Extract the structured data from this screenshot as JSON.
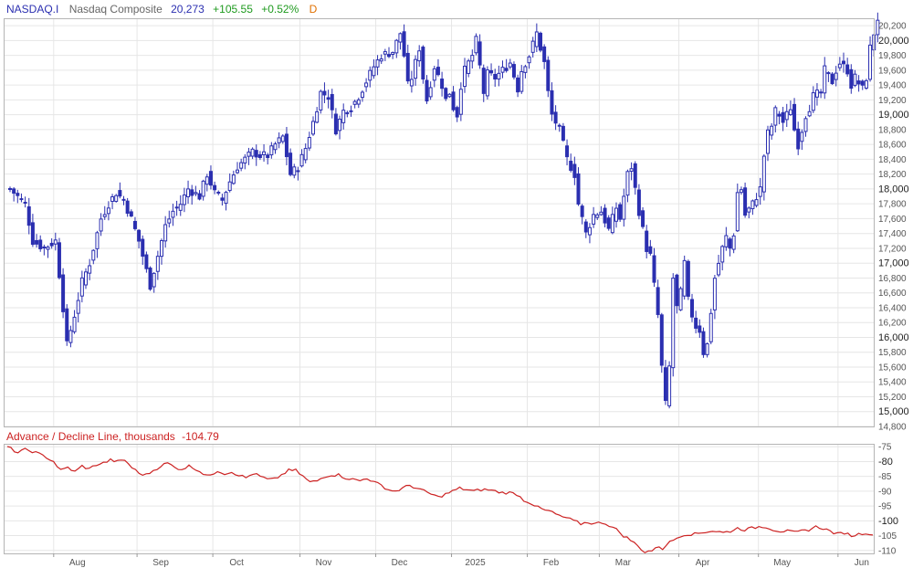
{
  "header": {
    "symbol": "NASDAQ.I",
    "name": "Nasdaq Composite",
    "last": "20,273",
    "change": "+105.55",
    "change_pct": "+0.52%",
    "period": "D"
  },
  "indicator": {
    "title": "Advance / Decline Line, thousands",
    "value": "-104.79"
  },
  "colors": {
    "up_candle": "#2b2fb0",
    "down_candle": "#2b2fb0",
    "ad_line": "#cc2222",
    "grid": "#e6e6e6",
    "border": "#b5b5b5",
    "symbol": "#2b2fb0",
    "name": "#666666",
    "last": "#2b2fb0",
    "change": "#1f9a1f",
    "period": "#e07000",
    "indicator_title": "#cc2222"
  },
  "chart_data": [
    {
      "type": "candlestick",
      "ylim": [
        14800,
        20300
      ],
      "y_ticks": [
        14800,
        15000,
        15200,
        15400,
        15600,
        15800,
        16000,
        16200,
        16400,
        16600,
        16800,
        17000,
        17200,
        17400,
        17600,
        17800,
        18000,
        18200,
        18400,
        18600,
        18800,
        19000,
        19200,
        19400,
        19600,
        19800,
        20000,
        20200
      ],
      "y_tick_labels": [
        "14,800",
        "15,000",
        "15,200",
        "15,400",
        "15,600",
        "15,800",
        "16,000",
        "16,200",
        "16,400",
        "16,600",
        "16,800",
        "17,000",
        "17,200",
        "17,400",
        "17,600",
        "17,800",
        "18,000",
        "18,200",
        "18,400",
        "18,600",
        "18,800",
        "19,000",
        "19,200",
        "19,400",
        "19,600",
        "19,800",
        "20,000",
        "20,200"
      ],
      "y_bold_ticks": [
        15000,
        16000,
        17000,
        18000,
        19000,
        20000
      ],
      "month_labels": [
        "Aug",
        "Sep",
        "Oct",
        "Nov",
        "Dec",
        "2025",
        "Feb",
        "Mar",
        "Apr",
        "May",
        "Jun"
      ],
      "month_start_index": [
        12,
        34,
        54,
        77,
        97,
        117,
        137,
        156,
        177,
        198,
        219
      ],
      "close_anchors": [
        [
          0,
          18000
        ],
        [
          2,
          17900
        ],
        [
          4,
          17800
        ],
        [
          6,
          17300
        ],
        [
          9,
          17200
        ],
        [
          12,
          17300
        ],
        [
          14,
          16400
        ],
        [
          15,
          15900
        ],
        [
          17,
          16300
        ],
        [
          19,
          16750
        ],
        [
          21,
          17000
        ],
        [
          24,
          17600
        ],
        [
          26,
          17800
        ],
        [
          28,
          17950
        ],
        [
          30,
          17850
        ],
        [
          32,
          17600
        ],
        [
          34,
          17300
        ],
        [
          36,
          16900
        ],
        [
          37,
          16700
        ],
        [
          39,
          17100
        ],
        [
          41,
          17500
        ],
        [
          43,
          17700
        ],
        [
          45,
          17800
        ],
        [
          47,
          18000
        ],
        [
          50,
          17900
        ],
        [
          52,
          18200
        ],
        [
          54,
          17950
        ],
        [
          56,
          17850
        ],
        [
          58,
          18100
        ],
        [
          60,
          18300
        ],
        [
          62,
          18400
        ],
        [
          64,
          18500
        ],
        [
          66,
          18450
        ],
        [
          68,
          18450
        ],
        [
          70,
          18600
        ],
        [
          72,
          18700
        ],
        [
          74,
          18200
        ],
        [
          76,
          18300
        ],
        [
          78,
          18550
        ],
        [
          80,
          18900
        ],
        [
          82,
          19300
        ],
        [
          84,
          19250
        ],
        [
          86,
          18800
        ],
        [
          88,
          19050
        ],
        [
          90,
          19100
        ],
        [
          92,
          19250
        ],
        [
          94,
          19450
        ],
        [
          96,
          19650
        ],
        [
          98,
          19800
        ],
        [
          101,
          19850
        ],
        [
          103,
          20100
        ],
        [
          104,
          19800
        ],
        [
          105,
          19400
        ],
        [
          106,
          19500
        ],
        [
          108,
          19900
        ],
        [
          109,
          19500
        ],
        [
          110,
          19200
        ],
        [
          112,
          19650
        ],
        [
          114,
          19400
        ],
        [
          115,
          19200
        ],
        [
          116,
          19300
        ],
        [
          117,
          19100
        ],
        [
          118,
          19000
        ],
        [
          119,
          19400
        ],
        [
          120,
          19600
        ],
        [
          122,
          19800
        ],
        [
          123,
          20000
        ],
        [
          125,
          19300
        ],
        [
          126,
          19550
        ],
        [
          128,
          19500
        ],
        [
          130,
          19600
        ],
        [
          132,
          19700
        ],
        [
          134,
          19350
        ],
        [
          135,
          19600
        ],
        [
          137,
          19800
        ],
        [
          139,
          20100
        ],
        [
          141,
          19700
        ],
        [
          142,
          19300
        ],
        [
          143,
          19000
        ],
        [
          145,
          18800
        ],
        [
          147,
          18400
        ],
        [
          149,
          18200
        ],
        [
          150,
          17800
        ],
        [
          152,
          17400
        ],
        [
          154,
          17650
        ],
        [
          156,
          17700
        ],
        [
          158,
          17450
        ],
        [
          160,
          17750
        ],
        [
          161,
          17600
        ],
        [
          163,
          18200
        ],
        [
          164,
          18300
        ],
        [
          166,
          17700
        ],
        [
          168,
          17200
        ],
        [
          169,
          17100
        ],
        [
          170,
          16700
        ],
        [
          171,
          16300
        ],
        [
          172,
          15600
        ],
        [
          173,
          15100
        ],
        [
          174,
          15600
        ],
        [
          175,
          16800
        ],
        [
          176,
          16400
        ],
        [
          177,
          16600
        ],
        [
          178,
          17000
        ],
        [
          179,
          16500
        ],
        [
          180,
          16300
        ],
        [
          181,
          16150
        ],
        [
          182,
          16100
        ],
        [
          183,
          15800
        ],
        [
          184,
          15900
        ],
        [
          186,
          16800
        ],
        [
          188,
          17200
        ],
        [
          189,
          17350
        ],
        [
          190,
          17200
        ],
        [
          191,
          17400
        ],
        [
          192,
          17950
        ],
        [
          193,
          18000
        ],
        [
          194,
          17650
        ],
        [
          196,
          17800
        ],
        [
          198,
          18000
        ],
        [
          199,
          18450
        ],
        [
          200,
          18750
        ],
        [
          201,
          18850
        ],
        [
          202,
          19050
        ],
        [
          203,
          19000
        ],
        [
          204,
          18900
        ],
        [
          206,
          19100
        ],
        [
          207,
          18800
        ],
        [
          208,
          18600
        ],
        [
          210,
          19000
        ],
        [
          211,
          19100
        ],
        [
          212,
          19250
        ],
        [
          214,
          19300
        ],
        [
          215,
          19600
        ],
        [
          217,
          19450
        ],
        [
          218,
          19600
        ],
        [
          219,
          19700
        ],
        [
          221,
          19600
        ],
        [
          222,
          19400
        ],
        [
          223,
          19500
        ],
        [
          225,
          19350
        ],
        [
          226,
          19500
        ],
        [
          227,
          19900
        ],
        [
          228,
          20100
        ],
        [
          229,
          20273
        ]
      ]
    },
    {
      "type": "line",
      "title": "Advance / Decline Line, thousands",
      "ylim": [
        -111,
        -74
      ],
      "y_ticks": [
        -75,
        -80,
        -85,
        -90,
        -95,
        -100,
        -105,
        -110
      ],
      "y_tick_labels": [
        "-75",
        "-80",
        "-85",
        "-90",
        "-95",
        "-100",
        "-105",
        "-110"
      ],
      "y_bold_ticks": [
        -80,
        -100
      ],
      "points": [
        [
          0,
          -75
        ],
        [
          3,
          -77
        ],
        [
          5,
          -76
        ],
        [
          7,
          -76.5
        ],
        [
          9,
          -77.5
        ],
        [
          11,
          -78.5
        ],
        [
          13,
          -80
        ],
        [
          15,
          -83
        ],
        [
          17,
          -82
        ],
        [
          19,
          -83.5
        ],
        [
          21,
          -81.5
        ],
        [
          23,
          -82.5
        ],
        [
          25,
          -81
        ],
        [
          27,
          -80.5
        ],
        [
          29,
          -79.5
        ],
        [
          31,
          -80
        ],
        [
          33,
          -79.5
        ],
        [
          35,
          -82
        ],
        [
          37,
          -84
        ],
        [
          39,
          -84.5
        ],
        [
          41,
          -83
        ],
        [
          43,
          -81.5
        ],
        [
          45,
          -80.5
        ],
        [
          47,
          -82
        ],
        [
          49,
          -82.5
        ],
        [
          51,
          -81.5
        ],
        [
          53,
          -82.5
        ],
        [
          55,
          -84
        ],
        [
          57,
          -85
        ],
        [
          59,
          -83
        ],
        [
          61,
          -84
        ],
        [
          63,
          -83.5
        ],
        [
          65,
          -84.5
        ],
        [
          67,
          -85.5
        ],
        [
          69,
          -84
        ],
        [
          71,
          -85
        ],
        [
          73,
          -86
        ],
        [
          75,
          -86
        ],
        [
          77,
          -84.5
        ],
        [
          79,
          -83
        ],
        [
          81,
          -83
        ],
        [
          83,
          -85
        ],
        [
          85,
          -87
        ],
        [
          87,
          -86.5
        ],
        [
          89,
          -85
        ],
        [
          91,
          -84.5
        ],
        [
          93,
          -84.5
        ],
        [
          95,
          -85.5
        ],
        [
          97,
          -86
        ],
        [
          99,
          -86.5
        ],
        [
          101,
          -85.5
        ],
        [
          103,
          -87
        ],
        [
          105,
          -88
        ],
        [
          107,
          -89.5
        ],
        [
          109,
          -90
        ],
        [
          111,
          -89
        ],
        [
          113,
          -88
        ],
        [
          115,
          -89
        ],
        [
          117,
          -90
        ],
        [
          119,
          -91
        ],
        [
          121,
          -92
        ],
        [
          123,
          -91
        ],
        [
          125,
          -90
        ],
        [
          127,
          -89
        ],
        [
          129,
          -89.5
        ],
        [
          131,
          -90
        ],
        [
          133,
          -89.5
        ],
        [
          135,
          -89.5
        ],
        [
          137,
          -90
        ],
        [
          139,
          -90.5
        ],
        [
          141,
          -90.5
        ],
        [
          143,
          -91
        ],
        [
          145,
          -93
        ],
        [
          147,
          -94
        ],
        [
          149,
          -95.5
        ],
        [
          151,
          -96.5
        ],
        [
          153,
          -97
        ],
        [
          155,
          -98.5
        ],
        [
          157,
          -99
        ],
        [
          159,
          -100
        ],
        [
          161,
          -101
        ],
        [
          163,
          -100.5
        ],
        [
          165,
          -101
        ],
        [
          167,
          -100.5
        ],
        [
          169,
          -101.5
        ],
        [
          171,
          -103
        ],
        [
          173,
          -105
        ],
        [
          175,
          -106.5
        ],
        [
          176,
          -107.5
        ],
        [
          177,
          -108.5
        ],
        [
          179,
          -110.5
        ],
        [
          181,
          -110
        ],
        [
          182,
          -109.5
        ],
        [
          183,
          -108.5
        ],
        [
          184,
          -109.5
        ],
        [
          185,
          -108
        ],
        [
          187,
          -106.5
        ],
        [
          189,
          -105
        ],
        [
          191,
          -104.5
        ],
        [
          193,
          -104.5
        ],
        [
          195,
          -104
        ],
        [
          197,
          -103.5
        ],
        [
          199,
          -103.5
        ],
        [
          201,
          -104
        ],
        [
          203,
          -103.5
        ],
        [
          205,
          -102.5
        ],
        [
          207,
          -103
        ],
        [
          209,
          -102.5
        ],
        [
          211,
          -102
        ],
        [
          213,
          -102
        ],
        [
          215,
          -103
        ],
        [
          217,
          -103.5
        ],
        [
          219,
          -103.5
        ],
        [
          221,
          -104
        ],
        [
          223,
          -103.5
        ],
        [
          225,
          -103
        ],
        [
          227,
          -102
        ],
        [
          229,
          -102.5
        ],
        [
          231,
          -103.5
        ],
        [
          233,
          -104.5
        ],
        [
          235,
          -104
        ],
        [
          237,
          -105
        ],
        [
          239,
          -104.5
        ],
        [
          241,
          -104
        ],
        [
          243,
          -104.79
        ]
      ]
    }
  ]
}
